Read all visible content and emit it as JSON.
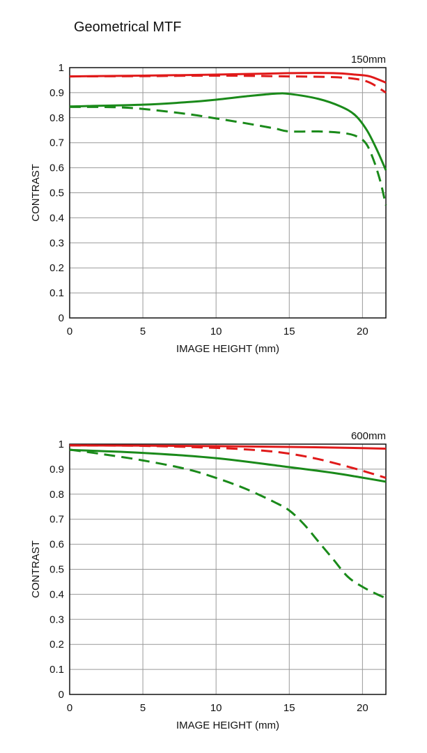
{
  "page": {
    "title": "Geometrical MTF"
  },
  "colors": {
    "red": "#e01a1a",
    "green": "#1a8a1a",
    "grid": "#999999",
    "frame": "#111111"
  },
  "chart_data": [
    {
      "type": "line",
      "focal_label": "150mm",
      "xlabel": "IMAGE HEIGHT (mm)",
      "ylabel": "CONTRAST",
      "xlim": [
        0,
        21.6
      ],
      "ylim": [
        0,
        1
      ],
      "xticks": [
        "0",
        "5",
        "10",
        "15",
        "20"
      ],
      "yticks": [
        "0",
        "0.1",
        "0.2",
        "0.3",
        "0.4",
        "0.5",
        "0.6",
        "0.7",
        "0.8",
        "0.9",
        "1"
      ],
      "grid": true,
      "series": [
        {
          "color": "red",
          "style": "solid",
          "points": [
            [
              0,
              0.965
            ],
            [
              5,
              0.968
            ],
            [
              10,
              0.972
            ],
            [
              15,
              0.978
            ],
            [
              18,
              0.978
            ],
            [
              19.5,
              0.972
            ],
            [
              20.5,
              0.965
            ],
            [
              21.6,
              0.94
            ]
          ]
        },
        {
          "color": "red",
          "style": "dashed",
          "points": [
            [
              0,
              0.965
            ],
            [
              5,
              0.966
            ],
            [
              10,
              0.968
            ],
            [
              15,
              0.965
            ],
            [
              18,
              0.962
            ],
            [
              19.5,
              0.955
            ],
            [
              20.5,
              0.94
            ],
            [
              21.6,
              0.9
            ]
          ]
        },
        {
          "color": "green",
          "style": "solid",
          "points": [
            [
              0,
              0.845
            ],
            [
              5,
              0.852
            ],
            [
              8,
              0.862
            ],
            [
              10,
              0.872
            ],
            [
              12,
              0.885
            ],
            [
              14,
              0.896
            ],
            [
              15,
              0.895
            ],
            [
              17,
              0.875
            ],
            [
              18.5,
              0.845
            ],
            [
              19.5,
              0.81
            ],
            [
              20.3,
              0.75
            ],
            [
              21,
              0.67
            ],
            [
              21.6,
              0.59
            ]
          ]
        },
        {
          "color": "green",
          "style": "dashed",
          "points": [
            [
              0,
              0.843
            ],
            [
              3,
              0.842
            ],
            [
              5,
              0.835
            ],
            [
              8,
              0.815
            ],
            [
              10,
              0.797
            ],
            [
              12,
              0.778
            ],
            [
              14,
              0.757
            ],
            [
              15,
              0.745
            ],
            [
              17,
              0.745
            ],
            [
              18.5,
              0.74
            ],
            [
              19.5,
              0.728
            ],
            [
              20.2,
              0.7
            ],
            [
              20.7,
              0.64
            ],
            [
              21.2,
              0.55
            ],
            [
              21.6,
              0.45
            ]
          ]
        }
      ]
    },
    {
      "type": "line",
      "focal_label": "600mm",
      "xlabel": "IMAGE HEIGHT (mm)",
      "ylabel": "CONTRAST",
      "xlim": [
        0,
        21.6
      ],
      "ylim": [
        0,
        1
      ],
      "xticks": [
        "0",
        "5",
        "10",
        "15",
        "20"
      ],
      "yticks": [
        "0",
        "0.1",
        "0.2",
        "0.3",
        "0.4",
        "0.5",
        "0.6",
        "0.7",
        "0.8",
        "0.9",
        "1"
      ],
      "grid": true,
      "series": [
        {
          "color": "red",
          "style": "solid",
          "points": [
            [
              0,
              0.995
            ],
            [
              5,
              0.994
            ],
            [
              10,
              0.992
            ],
            [
              15,
              0.989
            ],
            [
              20,
              0.984
            ],
            [
              21.6,
              0.982
            ]
          ]
        },
        {
          "color": "red",
          "style": "dashed",
          "points": [
            [
              0,
              0.995
            ],
            [
              5,
              0.993
            ],
            [
              10,
              0.985
            ],
            [
              13,
              0.975
            ],
            [
              15,
              0.962
            ],
            [
              17,
              0.94
            ],
            [
              19,
              0.91
            ],
            [
              20.5,
              0.885
            ],
            [
              21.6,
              0.865
            ]
          ]
        },
        {
          "color": "green",
          "style": "solid",
          "points": [
            [
              0,
              0.977
            ],
            [
              5,
              0.965
            ],
            [
              10,
              0.944
            ],
            [
              15,
              0.908
            ],
            [
              18,
              0.885
            ],
            [
              20,
              0.866
            ],
            [
              21.6,
              0.85
            ]
          ]
        },
        {
          "color": "green",
          "style": "dashed",
          "points": [
            [
              0,
              0.978
            ],
            [
              2,
              0.962
            ],
            [
              5,
              0.935
            ],
            [
              8,
              0.9
            ],
            [
              10,
              0.865
            ],
            [
              12,
              0.822
            ],
            [
              14,
              0.768
            ],
            [
              15,
              0.735
            ],
            [
              16,
              0.68
            ],
            [
              17,
              0.61
            ],
            [
              18,
              0.54
            ],
            [
              19,
              0.47
            ],
            [
              20,
              0.43
            ],
            [
              21,
              0.4
            ],
            [
              21.6,
              0.385
            ]
          ]
        }
      ]
    }
  ]
}
